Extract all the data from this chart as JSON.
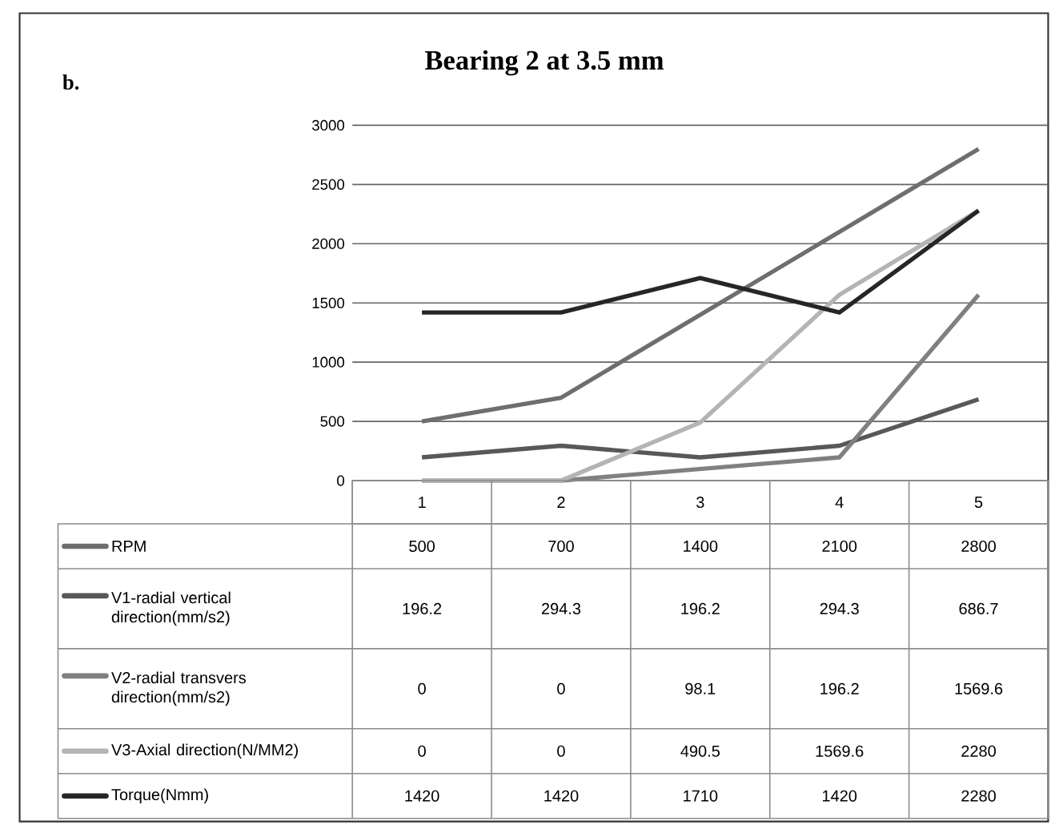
{
  "chart_data": {
    "type": "line",
    "title": "Bearing 2 at 3.5 mm",
    "annotations": [
      "b."
    ],
    "categories": [
      "1",
      "2",
      "3",
      "4",
      "5"
    ],
    "series": [
      {
        "name": "RPM",
        "color": "#6e6e6e",
        "values": [
          500,
          700,
          1400,
          2100,
          2800
        ]
      },
      {
        "name": "V1-radial vertical direction(mm/s2)",
        "color": "#585858",
        "values": [
          196.2,
          294.3,
          196.2,
          294.3,
          686.7
        ]
      },
      {
        "name": "V2-radial transvers direction(mm/s2)",
        "color": "#808080",
        "values": [
          0,
          0,
          98.1,
          196.2,
          1569.6
        ]
      },
      {
        "name": "V3-Axial direction(N/MM2)",
        "color": "#b4b4b4",
        "values": [
          0,
          0,
          490.5,
          1569.6,
          2280
        ]
      },
      {
        "name": "Torque(Nmm)",
        "color": "#262626",
        "values": [
          1420,
          1420,
          1710,
          1420,
          2280
        ]
      }
    ],
    "ylim": [
      0,
      3000
    ],
    "yticks": [
      0,
      500,
      1000,
      1500,
      2000,
      2500,
      3000
    ],
    "grid": "y",
    "legend": "bottom",
    "data_labels": true,
    "marker": "none",
    "line_style": "solid"
  }
}
